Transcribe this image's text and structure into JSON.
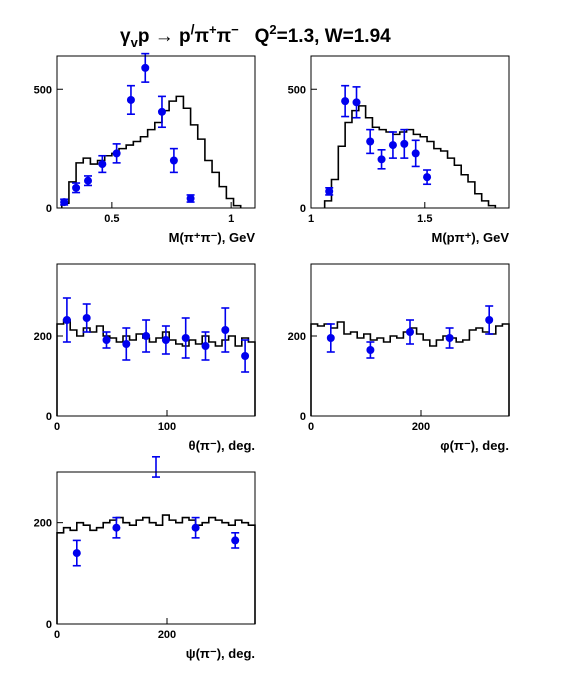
{
  "title": {
    "main": "γ",
    "sub_v": "v",
    "p1": "p → p",
    "prime": "/",
    "pi1": "π",
    "sup_plus": "+",
    "pi2": "π",
    "sup_minus": "−",
    "q": "   Q",
    "sup_2": "2",
    "rest": "=1.3, W=1.94"
  },
  "colors": {
    "data_points": "#0000ee",
    "histogram": "#000000"
  },
  "chart_data": [
    {
      "type": "scatter",
      "id": "m_pipi",
      "xlabel": "M(π⁺π⁻), GeV",
      "xlim": [
        0.27,
        1.1
      ],
      "ylim": [
        0,
        640
      ],
      "xticks": [
        0.5,
        1
      ],
      "xticklabels": [
        "0.5",
        "1"
      ],
      "yticks": [
        0,
        500
      ],
      "yticklabels": [
        "0",
        "500"
      ],
      "points": {
        "x": [
          0.3,
          0.35,
          0.4,
          0.46,
          0.52,
          0.58,
          0.64,
          0.71,
          0.76,
          0.83,
          0.88,
          0.94
        ],
        "y": [
          25,
          85,
          115,
          185,
          230,
          455,
          590,
          405,
          200,
          40,
          0,
          0
        ],
        "err": [
          12,
          20,
          20,
          35,
          40,
          60,
          60,
          65,
          50,
          15,
          0,
          0
        ]
      },
      "model_hist": {
        "edges": [
          0.29,
          0.32,
          0.35,
          0.38,
          0.41,
          0.44,
          0.47,
          0.5,
          0.53,
          0.56,
          0.59,
          0.62,
          0.65,
          0.68,
          0.71,
          0.74,
          0.77,
          0.8,
          0.83,
          0.86,
          0.89,
          0.92,
          0.95,
          0.98,
          1.01,
          1.04
        ],
        "values": [
          20,
          110,
          190,
          210,
          185,
          200,
          220,
          230,
          250,
          265,
          280,
          300,
          330,
          360,
          410,
          450,
          470,
          420,
          350,
          290,
          200,
          150,
          90,
          40,
          10
        ]
      }
    },
    {
      "type": "scatter",
      "id": "m_ppi",
      "xlabel": "M(pπ⁺), GeV",
      "xlim": [
        1.0,
        1.87
      ],
      "ylim": [
        0,
        640
      ],
      "xticks": [
        1,
        1.5
      ],
      "xticklabels": [
        "1",
        "1.5"
      ],
      "yticks": [
        0,
        500
      ],
      "yticklabels": [
        "0",
        "500"
      ],
      "points": {
        "x": [
          1.08,
          1.15,
          1.2,
          1.26,
          1.31,
          1.36,
          1.41,
          1.46,
          1.51,
          1.57
        ],
        "y": [
          70,
          450,
          445,
          280,
          205,
          265,
          270,
          230,
          130,
          0
        ],
        "err": [
          15,
          65,
          65,
          50,
          40,
          55,
          60,
          55,
          30,
          0
        ]
      },
      "model_hist": {
        "edges": [
          1.06,
          1.09,
          1.12,
          1.15,
          1.18,
          1.21,
          1.24,
          1.27,
          1.3,
          1.33,
          1.36,
          1.39,
          1.42,
          1.45,
          1.48,
          1.51,
          1.54,
          1.57,
          1.6,
          1.63,
          1.66,
          1.69,
          1.72,
          1.75,
          1.78,
          1.81
        ],
        "values": [
          30,
          120,
          260,
          360,
          410,
          430,
          380,
          340,
          330,
          320,
          310,
          320,
          330,
          310,
          300,
          280,
          250,
          240,
          210,
          180,
          140,
          110,
          60,
          30,
          10
        ]
      }
    },
    {
      "type": "scatter",
      "id": "theta",
      "xlabel": "θ(π⁻), deg.",
      "xlim": [
        0,
        180
      ],
      "ylim": [
        0,
        380
      ],
      "xticks": [
        0,
        100
      ],
      "xticklabels": [
        "0",
        "100"
      ],
      "yticks": [
        0,
        200
      ],
      "yticklabels": [
        "0",
        "200"
      ],
      "points": {
        "x": [
          9,
          27,
          45,
          63,
          81,
          99,
          117,
          135,
          153,
          171
        ],
        "y": [
          240,
          245,
          190,
          180,
          200,
          190,
          195,
          175,
          215,
          150
        ],
        "err": [
          55,
          35,
          20,
          40,
          40,
          35,
          50,
          35,
          55,
          40
        ]
      },
      "model_hist": {
        "edges": [
          0,
          6,
          12,
          18,
          24,
          30,
          36,
          42,
          48,
          54,
          60,
          66,
          72,
          78,
          84,
          90,
          96,
          102,
          108,
          114,
          120,
          126,
          132,
          138,
          144,
          150,
          156,
          162,
          168,
          174,
          180
        ],
        "values": [
          230,
          240,
          215,
          200,
          220,
          210,
          225,
          200,
          195,
          185,
          200,
          190,
          205,
          195,
          185,
          195,
          210,
          190,
          180,
          175,
          190,
          180,
          200,
          185,
          175,
          190,
          200,
          175,
          195,
          185
        ]
      }
    },
    {
      "type": "scatter",
      "id": "phi",
      "xlabel": "φ(π⁻), deg.",
      "xlim": [
        0,
        360
      ],
      "ylim": [
        0,
        380
      ],
      "xticks": [
        0,
        200
      ],
      "xticklabels": [
        "0",
        "200"
      ],
      "yticks": [
        0,
        200
      ],
      "yticklabels": [
        "0",
        "200"
      ],
      "points": {
        "x": [
          36,
          108,
          180,
          252,
          324
        ],
        "y": [
          195,
          165,
          210,
          195,
          240
        ],
        "err": [
          35,
          20,
          30,
          25,
          35
        ]
      },
      "model_hist": {
        "edges": [
          0,
          12,
          24,
          36,
          48,
          60,
          72,
          84,
          96,
          108,
          120,
          132,
          144,
          156,
          168,
          180,
          192,
          204,
          216,
          228,
          240,
          252,
          264,
          276,
          288,
          300,
          312,
          324,
          336,
          348,
          360
        ],
        "values": [
          230,
          225,
          230,
          220,
          235,
          205,
          210,
          195,
          205,
          190,
          195,
          185,
          200,
          195,
          210,
          220,
          205,
          190,
          175,
          190,
          200,
          195,
          185,
          190,
          215,
          220,
          210,
          205,
          225,
          230
        ]
      }
    },
    {
      "type": "scatter",
      "id": "psi",
      "xlabel": "ψ(π⁻), deg.",
      "xlim": [
        0,
        360
      ],
      "ylim": [
        0,
        300
      ],
      "xticks": [
        0,
        200
      ],
      "xticklabels": [
        "0",
        "200"
      ],
      "yticks": [
        0,
        200
      ],
      "yticklabels": [
        "0",
        "200"
      ],
      "points": {
        "x": [
          36,
          108,
          180,
          252,
          324
        ],
        "y": [
          140,
          190,
          310,
          190,
          165
        ],
        "err": [
          25,
          20,
          20,
          20,
          15
        ]
      },
      "model_hist": {
        "edges": [
          0,
          12,
          24,
          36,
          48,
          60,
          72,
          84,
          96,
          108,
          120,
          132,
          144,
          156,
          168,
          180,
          192,
          204,
          216,
          228,
          240,
          252,
          264,
          276,
          288,
          300,
          312,
          324,
          336,
          348,
          360
        ],
        "values": [
          180,
          190,
          185,
          200,
          195,
          185,
          190,
          200,
          205,
          210,
          200,
          195,
          205,
          210,
          200,
          195,
          215,
          205,
          200,
          210,
          205,
          195,
          200,
          210,
          205,
          200,
          195,
          205,
          200,
          195
        ]
      }
    }
  ]
}
